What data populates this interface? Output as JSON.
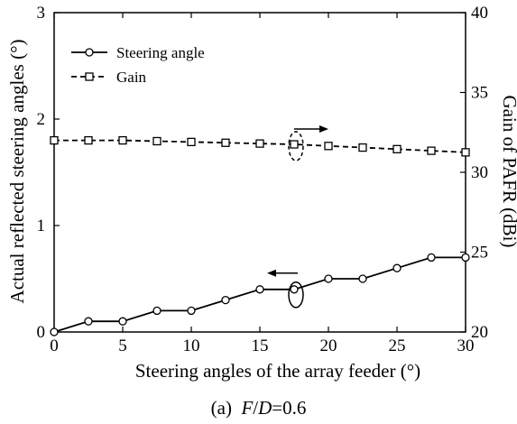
{
  "caption": {
    "prefix": "(a)",
    "F": "F",
    "slash": "/",
    "D": "D",
    "value": "=0.6"
  },
  "chart_data": {
    "type": "line",
    "xlabel": "Steering angles of the array feeder (°)",
    "ylabel": "Actual reflected steering angles (°)",
    "ylabel_right": "Gain of PAFR (dBi)",
    "xlim": [
      0,
      30
    ],
    "ylim": [
      0,
      3
    ],
    "ylim_right": [
      20,
      40
    ],
    "x_ticks": [
      "0",
      "5",
      "10",
      "15",
      "20",
      "25",
      "30"
    ],
    "y_ticks": [
      "0",
      "1",
      "2",
      "3"
    ],
    "y_right_ticks": [
      "20",
      "25",
      "30",
      "35",
      "40"
    ],
    "legend_position": "top-left",
    "grid": false,
    "series": [
      {
        "name": "Steering angle",
        "axis": "left",
        "line_style": "solid",
        "marker": "circle",
        "x": [
          0,
          2.5,
          5,
          7.5,
          10,
          12.5,
          15,
          17.5,
          20,
          22.5,
          25,
          27.5,
          30
        ],
        "values": [
          0,
          0.1,
          0.1,
          0.2,
          0.2,
          0.3,
          0.4,
          0.4,
          0.5,
          0.5,
          0.6,
          0.7,
          0.7
        ]
      },
      {
        "name": "Gain",
        "axis": "right",
        "line_style": "dashed",
        "marker": "square",
        "x": [
          0,
          2.5,
          5,
          7.5,
          10,
          12.5,
          15,
          17.5,
          20,
          22.5,
          25,
          27.5,
          30
        ],
        "values": [
          32.0,
          32.0,
          32.0,
          31.95,
          31.9,
          31.85,
          31.8,
          31.75,
          31.65,
          31.55,
          31.45,
          31.35,
          31.25
        ]
      }
    ],
    "annotations": [
      {
        "text": "arrow-left",
        "target_series": "Steering angle",
        "x": 17.5
      },
      {
        "text": "arrow-right",
        "target_series": "Gain",
        "x": 17.5
      }
    ]
  }
}
